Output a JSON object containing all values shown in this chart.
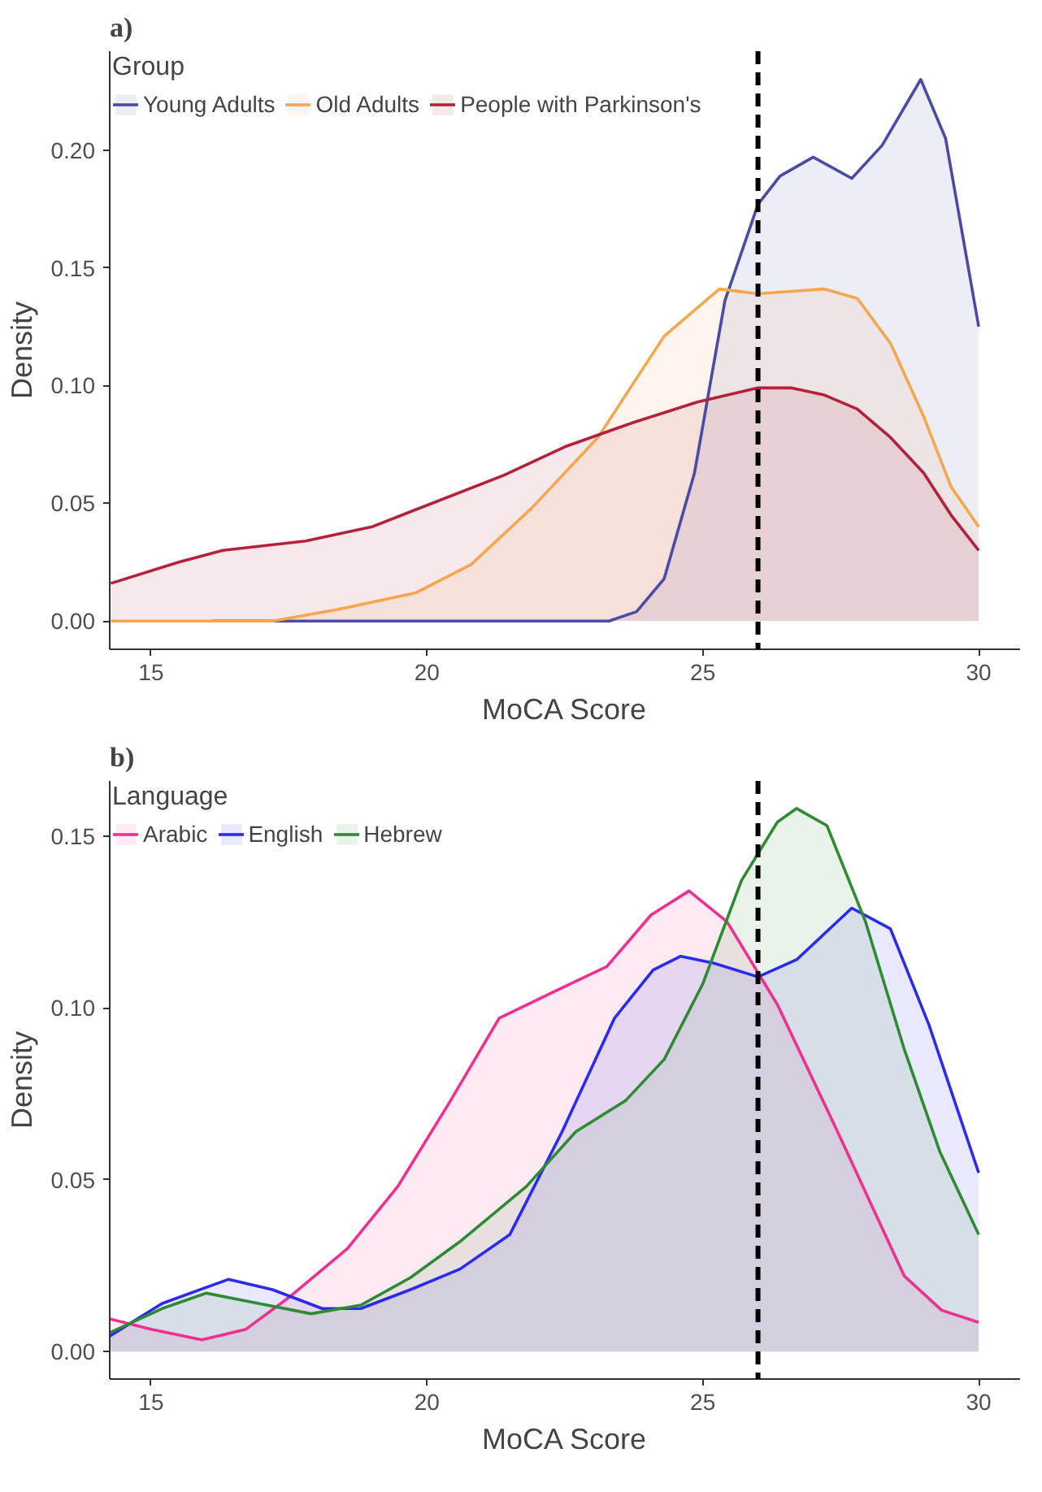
{
  "chart_data": [
    {
      "type": "area",
      "title": "a)",
      "xlabel": "MoCA Score",
      "ylabel": "Density",
      "legend_title": "Group",
      "legend": "top left",
      "grid": false,
      "xlim": [
        14.25,
        30.75
      ],
      "ylim": [
        -0.012,
        0.242
      ],
      "xticks": [
        15,
        20,
        25,
        30
      ],
      "yticks": [
        {
          "value": 0,
          "label": "0.00"
        },
        {
          "value": 0.05,
          "label": "0.05"
        },
        {
          "value": 0.1,
          "label": "0.10"
        },
        {
          "value": 0.15,
          "label": "0.15"
        },
        {
          "value": 0.2,
          "label": "0.20"
        }
      ],
      "ref_lines": [
        {
          "axis": "x",
          "value": 26,
          "color": "#000000",
          "line_style": "dashed"
        }
      ],
      "series": [
        {
          "name": "Young Adults",
          "color": "#4b4ba6",
          "x": [
            16.1,
            23.3,
            23.8,
            24.3,
            24.85,
            25.4,
            26.0,
            26.4,
            27.0,
            27.7,
            28.25,
            28.95,
            29.4,
            30.0
          ],
          "values": [
            0,
            0,
            0.004,
            0.018,
            0.063,
            0.136,
            0.177,
            0.189,
            0.197,
            0.188,
            0.202,
            0.23,
            0.205,
            0.125
          ]
        },
        {
          "name": "Old Adults",
          "color": "#f7a64e",
          "x": [
            14.27,
            17.2,
            18.4,
            19.8,
            20.8,
            21.9,
            23.1,
            24.3,
            25.3,
            26.0,
            27.2,
            27.8,
            28.4,
            29.0,
            29.5,
            30.0
          ],
          "values": [
            0,
            0,
            0.005,
            0.012,
            0.024,
            0.048,
            0.078,
            0.121,
            0.141,
            0.139,
            0.141,
            0.137,
            0.118,
            0.087,
            0.057,
            0.04
          ]
        },
        {
          "name": "People with Parkinson's",
          "color": "#b5213a",
          "x": [
            14.27,
            15.5,
            16.3,
            17.8,
            19.0,
            20.2,
            21.4,
            22.5,
            23.7,
            24.9,
            26.0,
            26.6,
            27.2,
            27.8,
            28.4,
            29.0,
            29.5,
            30.0
          ],
          "values": [
            0.016,
            0.025,
            0.03,
            0.034,
            0.04,
            0.051,
            0.062,
            0.074,
            0.084,
            0.093,
            0.099,
            0.099,
            0.096,
            0.09,
            0.078,
            0.063,
            0.045,
            0.03
          ]
        }
      ]
    },
    {
      "type": "area",
      "title": "b)",
      "xlabel": "MoCA Score",
      "ylabel": "Density",
      "legend_title": "Language",
      "legend": "top left",
      "grid": false,
      "xlim": [
        14.25,
        30.75
      ],
      "ylim": [
        -0.008,
        0.166
      ],
      "xticks": [
        15,
        20,
        25,
        30
      ],
      "yticks": [
        {
          "value": 0,
          "label": "0.00"
        },
        {
          "value": 0.05,
          "label": "0.05"
        },
        {
          "value": 0.1,
          "label": "0.10"
        },
        {
          "value": 0.15,
          "label": "0.15"
        }
      ],
      "ref_lines": [
        {
          "axis": "x",
          "value": 26,
          "color": "#000000",
          "line_style": "dashed"
        }
      ],
      "series": [
        {
          "name": "Arabic",
          "color": "#f0308e",
          "x": [
            14.25,
            15.0,
            15.92,
            16.72,
            17.52,
            18.56,
            19.47,
            20.39,
            21.31,
            22.34,
            23.26,
            24.06,
            24.75,
            25.44,
            26.35,
            27.5,
            28.65,
            29.33,
            30.0
          ],
          "values": [
            0.0095,
            0.0065,
            0.0034,
            0.0065,
            0.016,
            0.03,
            0.048,
            0.072,
            0.097,
            0.105,
            0.112,
            0.127,
            0.134,
            0.125,
            0.101,
            0.062,
            0.022,
            0.012,
            0.0085
          ]
        },
        {
          "name": "English",
          "color": "#2b2bf0",
          "x": [
            14.25,
            15.2,
            16.4,
            17.2,
            18.1,
            18.8,
            19.7,
            20.6,
            21.5,
            22.45,
            23.4,
            24.1,
            24.6,
            25.2,
            26.0,
            26.7,
            27.7,
            28.4,
            29.1,
            30.0
          ],
          "values": [
            0.0045,
            0.014,
            0.021,
            0.018,
            0.0125,
            0.0125,
            0.018,
            0.024,
            0.034,
            0.064,
            0.097,
            0.111,
            0.115,
            0.113,
            0.109,
            0.114,
            0.129,
            0.123,
            0.095,
            0.052
          ]
        },
        {
          "name": "Hebrew",
          "color": "#2e8b34",
          "x": [
            14.25,
            15.2,
            16.0,
            16.95,
            17.9,
            18.8,
            19.7,
            20.6,
            21.8,
            22.7,
            23.6,
            24.3,
            25.0,
            25.7,
            26.35,
            26.7,
            27.25,
            27.95,
            28.65,
            29.3,
            30.0
          ],
          "values": [
            0.0055,
            0.0125,
            0.017,
            0.014,
            0.011,
            0.0135,
            0.0215,
            0.032,
            0.048,
            0.064,
            0.073,
            0.085,
            0.107,
            0.137,
            0.154,
            0.158,
            0.153,
            0.125,
            0.088,
            0.058,
            0.034
          ]
        }
      ]
    }
  ]
}
